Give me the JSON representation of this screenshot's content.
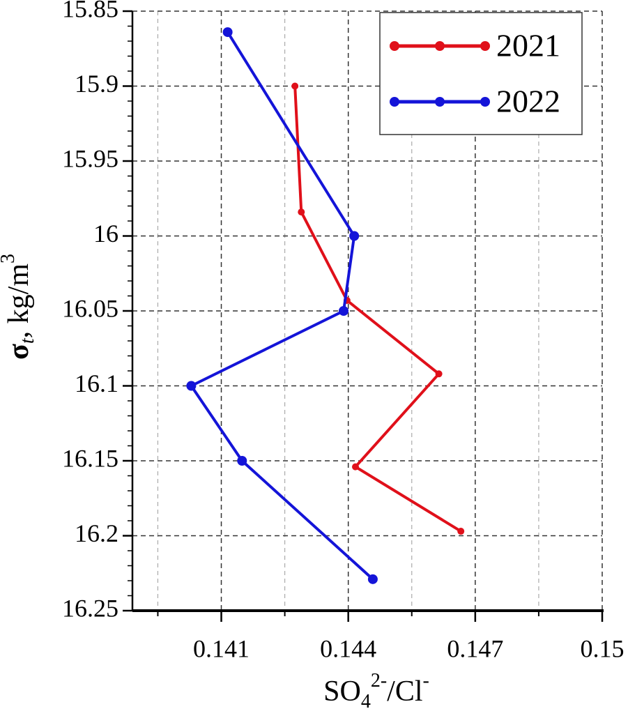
{
  "chart_data": {
    "type": "line",
    "x_label": {
      "main": "SO",
      "sub": "4",
      "sup": "2-",
      "main2": "/Cl",
      "sup2": "-"
    },
    "y_label": {
      "main": "σ",
      "sub": "t",
      "main2": ", kg/m",
      "sup": "3"
    },
    "xlim": [
      0.1389,
      0.15
    ],
    "xticks": [
      0.141,
      0.144,
      0.147,
      0.15
    ],
    "xminor": [
      0.1395,
      0.1425,
      0.1455,
      0.1485
    ],
    "ylim": [
      15.85,
      16.25
    ],
    "y_inverted": true,
    "yticks": [
      15.85,
      15.9,
      15.95,
      16,
      16.05,
      16.1,
      16.15,
      16.2,
      16.25
    ],
    "grid": true,
    "legend": "upper right",
    "series": [
      {
        "name": "2021",
        "color": "#e0101a",
        "x": [
          0.14274,
          0.14289,
          0.14397,
          0.14614,
          0.14417,
          0.14666
        ],
        "y": [
          15.9,
          15.984,
          16.043,
          16.092,
          16.154,
          16.197
        ]
      },
      {
        "name": "2022",
        "color": "#1414d8",
        "x": [
          0.14115,
          0.14414,
          0.14389,
          0.14029,
          0.14149,
          0.14458
        ],
        "y": [
          15.864,
          16.0,
          16.05,
          16.1,
          16.15,
          16.229
        ]
      }
    ]
  }
}
